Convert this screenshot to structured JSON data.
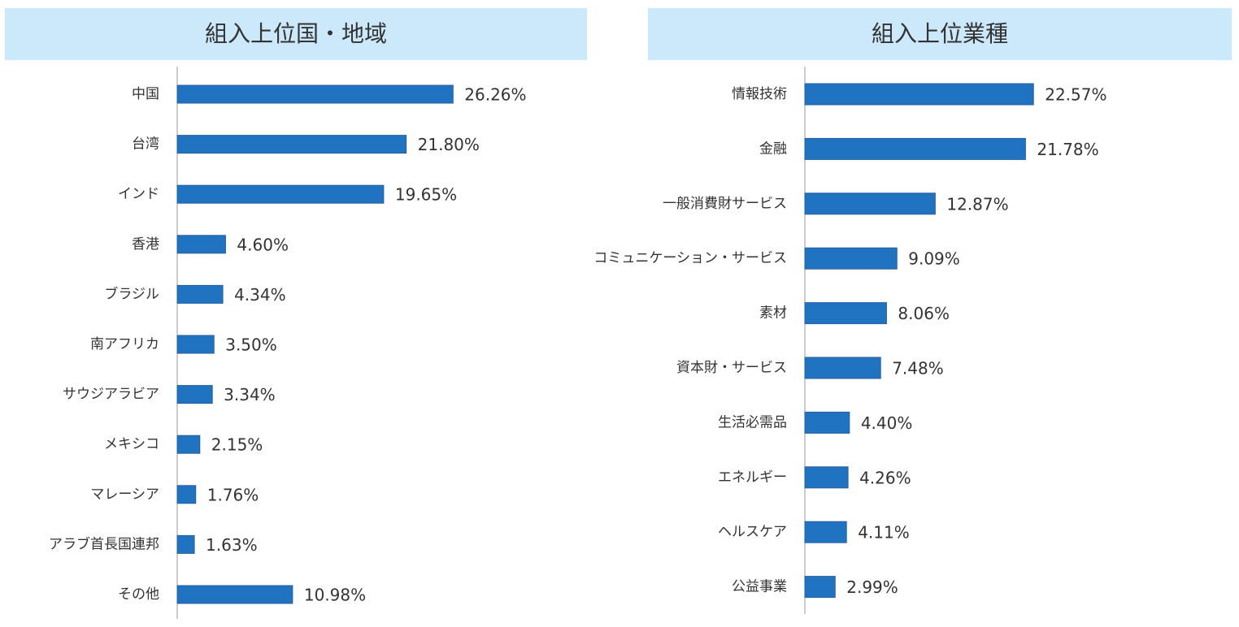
{
  "chart_data": [
    {
      "type": "bar",
      "orientation": "horizontal",
      "title": "組入上位国・地域",
      "color": "#1f73c1",
      "categories": [
        "中国",
        "台湾",
        "インド",
        "香港",
        "ブラジル",
        "南アフリカ",
        "サウジアラビア",
        "メキシコ",
        "マレーシア",
        "アラブ首長国連邦",
        "その他"
      ],
      "values": [
        26.26,
        21.8,
        19.65,
        4.6,
        4.34,
        3.5,
        3.34,
        2.15,
        1.76,
        1.63,
        10.98
      ],
      "value_labels": [
        "26.26%",
        "21.80%",
        "19.65%",
        "4.60%",
        "4.34%",
        "3.50%",
        "3.34%",
        "2.15%",
        "1.76%",
        "1.63%",
        "10.98%"
      ]
    },
    {
      "type": "bar",
      "orientation": "horizontal",
      "title": "組入上位業種",
      "color": "#1f73c1",
      "categories": [
        "情報技術",
        "金融",
        "一般消費財サービス",
        "コミュニケーション・サービス",
        "素材",
        "資本財・サービス",
        "生活必需品",
        "エネルギー",
        "ヘルスケア",
        "公益事業"
      ],
      "values": [
        22.57,
        21.78,
        12.87,
        9.09,
        8.06,
        7.48,
        4.4,
        4.26,
        4.11,
        2.99
      ],
      "value_labels": [
        "22.57%",
        "21.78%",
        "12.87%",
        "9.09%",
        "8.06%",
        "7.48%",
        "4.40%",
        "4.26%",
        "4.11%",
        "2.99%"
      ]
    }
  ]
}
